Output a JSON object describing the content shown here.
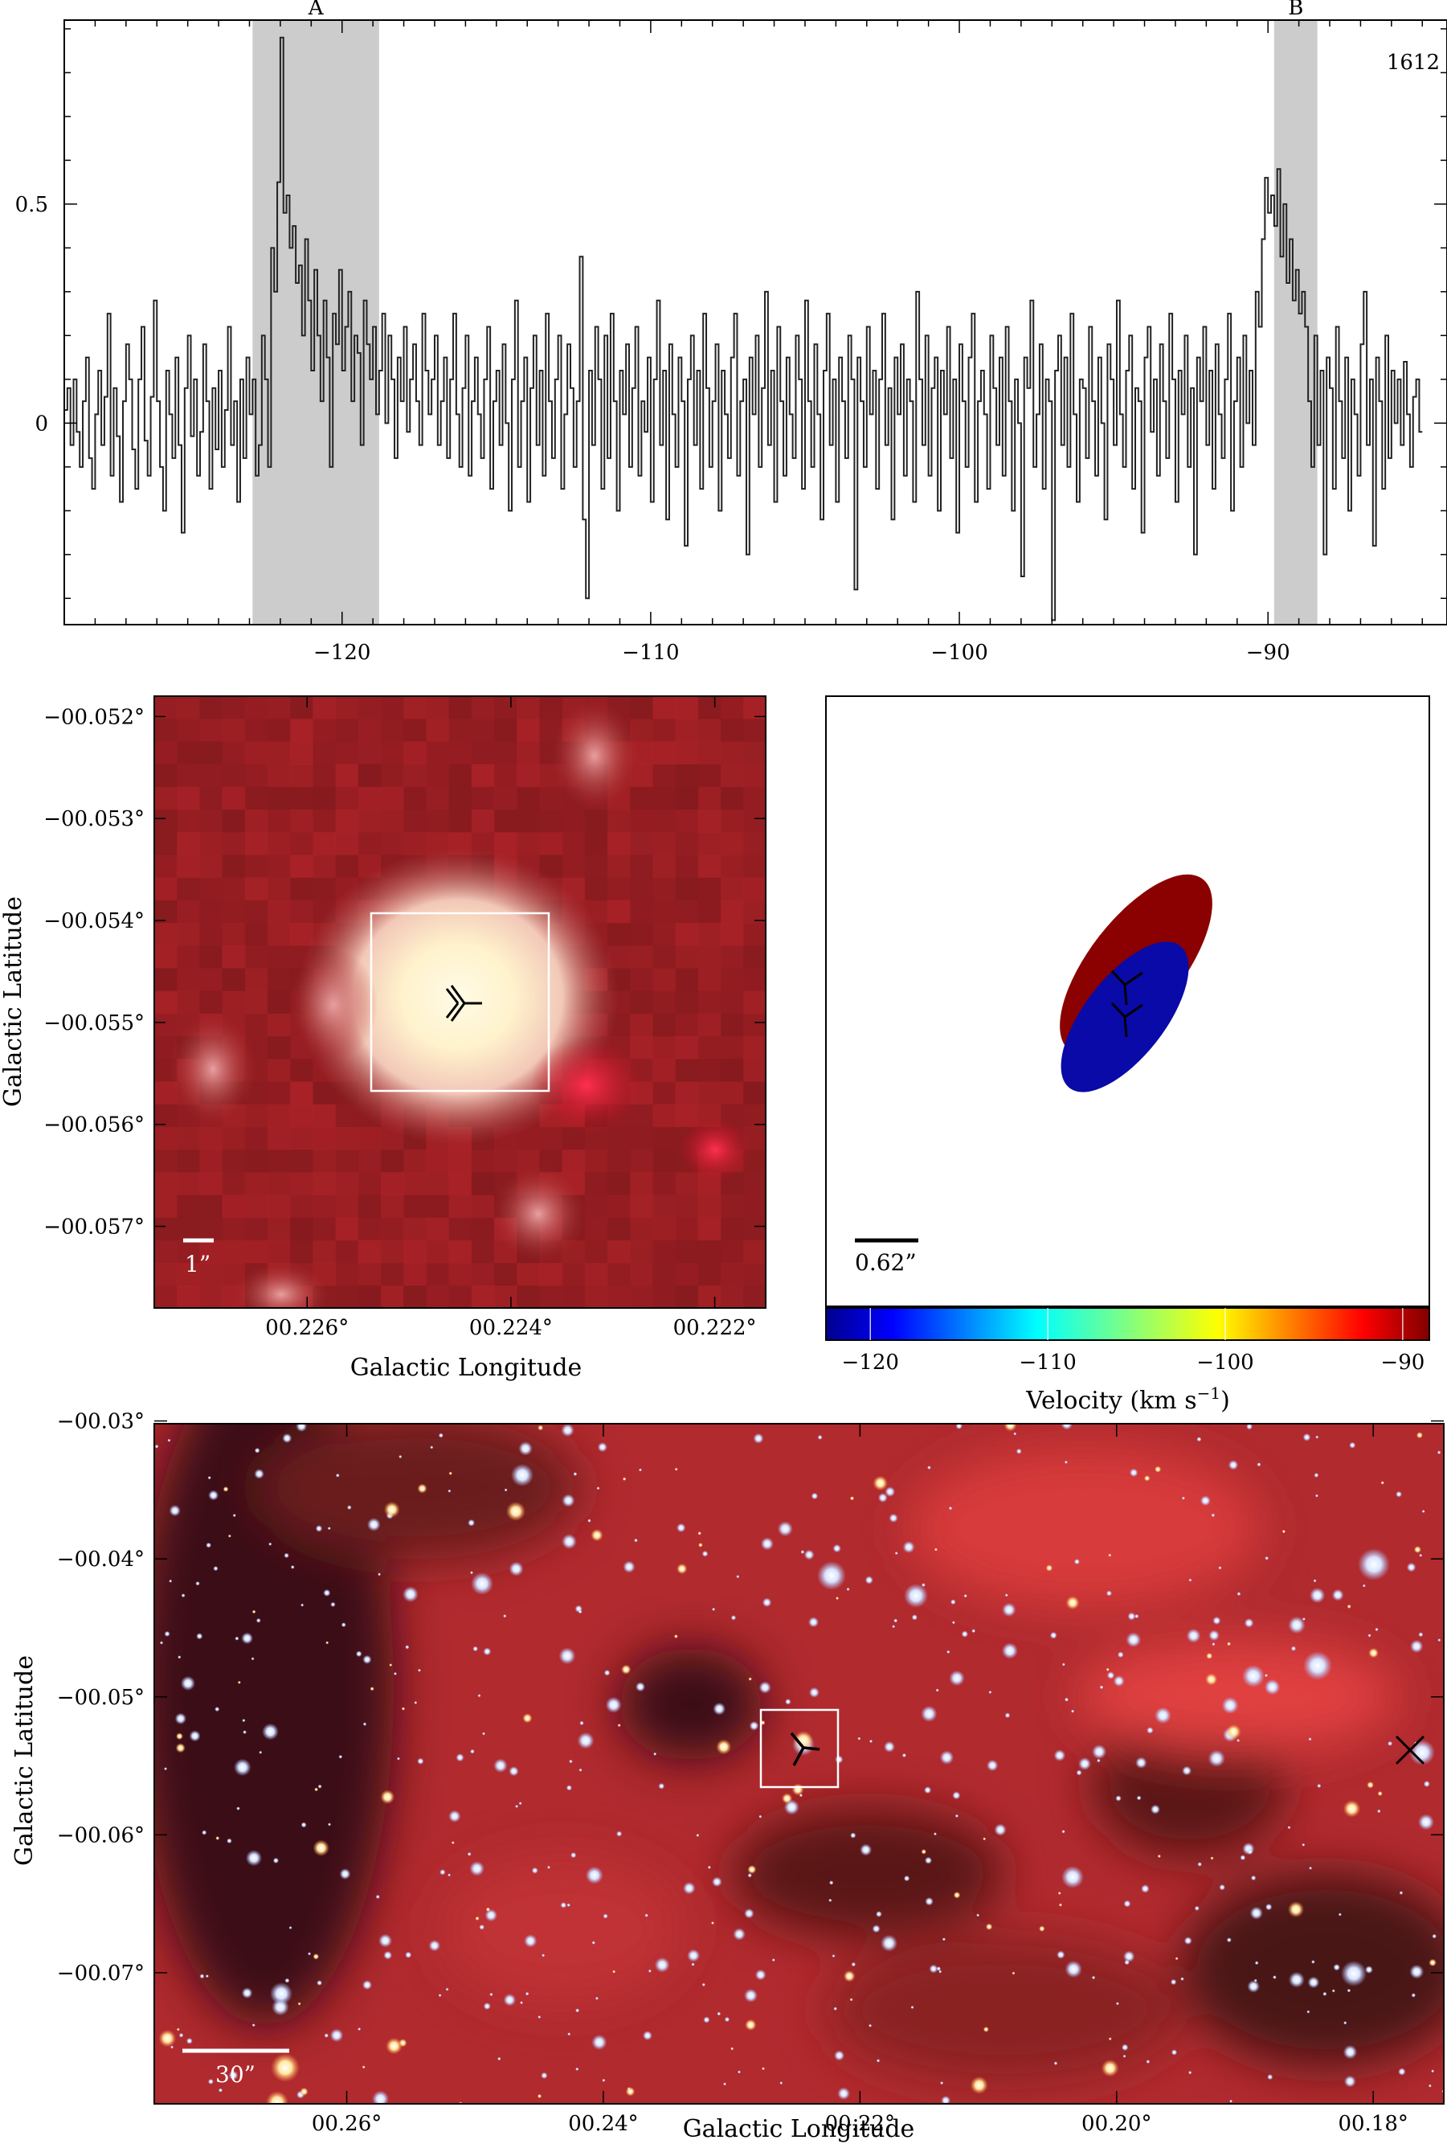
{
  "chart_data": [
    {
      "type": "line",
      "panel": "spectrum",
      "title": "",
      "xlabel": "",
      "ylabel": "",
      "xlim": [
        -129,
        -84.2
      ],
      "ylim": [
        -0.46,
        0.92
      ],
      "x_ticks": [
        -120,
        -110,
        -100,
        -90
      ],
      "x_tick_labels": [
        "−120",
        "−110",
        "−100",
        "−90"
      ],
      "y_ticks": [
        0,
        0.5
      ],
      "y_tick_labels": [
        "0",
        "0.5"
      ],
      "annotation": "1612",
      "highlight_regions": [
        {
          "label": "A",
          "x_range": [
            -122.9,
            -118.8
          ]
        },
        {
          "label": "B",
          "x_range": [
            -89.8,
            -88.4
          ]
        }
      ],
      "series": [
        {
          "x_start": -129.0,
          "x_step": 0.1,
          "values": [
            0.03,
            0.08,
            -0.05,
            0.1,
            -0.02,
            -0.1,
            0.05,
            0.15,
            -0.08,
            -0.15,
            0.02,
            0.12,
            -0.05,
            0.06,
            0.25,
            -0.12,
            0.08,
            -0.03,
            -0.18,
            0.05,
            0.18,
            0.1,
            -0.06,
            -0.15,
            0.1,
            0.22,
            -0.04,
            -0.12,
            0.06,
            0.28,
            0.05,
            -0.1,
            -0.2,
            0.12,
            0.02,
            -0.08,
            0.15,
            -0.05,
            -0.25,
            0.08,
            0.2,
            -0.03,
            0.1,
            -0.12,
            -0.02,
            0.18,
            0.05,
            -0.15,
            0.08,
            -0.06,
            0.12,
            -0.1,
            0.03,
            0.22,
            -0.05,
            0.05,
            -0.18,
            0.1,
            -0.08,
            0.15,
            0.02,
            0.1,
            -0.12,
            -0.05,
            0.2,
            0.1,
            -0.1,
            0.4,
            0.3,
            0.55,
            0.88,
            0.48,
            0.52,
            0.4,
            0.45,
            0.32,
            0.36,
            0.2,
            0.42,
            0.28,
            0.12,
            0.35,
            0.2,
            0.05,
            0.28,
            0.15,
            -0.1,
            0.25,
            0.18,
            0.35,
            0.12,
            0.22,
            0.3,
            0.05,
            0.2,
            0.16,
            -0.05,
            0.28,
            0.18,
            0.1,
            0.22,
            0.02,
            0.12,
            0.25,
            0.0,
            0.2,
            0.1,
            -0.08,
            0.15,
            0.05,
            0.22,
            -0.02,
            0.1,
            0.18,
            0.05,
            -0.05,
            0.25,
            0.12,
            0.02,
            0.1,
            0.2,
            -0.05,
            0.05,
            0.15,
            -0.08,
            0.1,
            0.25,
            0.02,
            -0.1,
            0.08,
            0.2,
            -0.12,
            0.05,
            0.15,
            0.02,
            -0.08,
            0.1,
            0.22,
            -0.15,
            0.05,
            0.12,
            -0.05,
            0.18,
            0.0,
            -0.2,
            0.1,
            0.28,
            -0.1,
            0.05,
            0.15,
            -0.18,
            0.08,
            0.2,
            -0.05,
            0.12,
            -0.12,
            0.25,
            0.05,
            -0.08,
            0.1,
            0.2,
            -0.15,
            0.02,
            0.18,
            0.08,
            -0.1,
            0.05,
            0.38,
            -0.22,
            -0.4,
            0.12,
            -0.05,
            0.22,
            0.1,
            -0.15,
            0.2,
            -0.08,
            0.25,
            0.05,
            -0.2,
            0.12,
            0.02,
            0.18,
            -0.1,
            0.08,
            0.22,
            -0.12,
            0.05,
            -0.02,
            0.15,
            -0.18,
            0.1,
            0.28,
            -0.05,
            0.12,
            -0.22,
            0.18,
            0.02,
            -0.1,
            0.15,
            0.05,
            -0.28,
            0.1,
            0.2,
            -0.05,
            0.12,
            -0.15,
            0.25,
            0.08,
            -0.1,
            0.05,
            0.18,
            -0.2,
            0.12,
            0.02,
            -0.08,
            0.15,
            0.25,
            -0.12,
            0.05,
            0.1,
            -0.3,
            0.15,
            0.02,
            0.2,
            -0.1,
            0.08,
            0.3,
            -0.05,
            0.12,
            -0.18,
            0.22,
            0.05,
            -0.12,
            0.15,
            0.02,
            -0.08,
            0.2,
            0.1,
            -0.15,
            0.28,
            0.05,
            -0.1,
            0.18,
            0.02,
            -0.22,
            0.12,
            0.25,
            -0.05,
            0.1,
            -0.18,
            0.15,
            0.05,
            -0.08,
            0.2,
            0.1,
            -0.38,
            0.15,
            0.05,
            -0.1,
            0.22,
            0.02,
            0.12,
            -0.15,
            0.1,
            0.25,
            -0.05,
            0.08,
            -0.22,
            0.15,
            0.02,
            0.18,
            -0.12,
            0.1,
            0.05,
            -0.18,
            0.3,
            0.1,
            -0.05,
            0.2,
            -0.12,
            0.08,
            0.15,
            -0.2,
            0.12,
            0.02,
            0.22,
            -0.08,
            0.1,
            -0.25,
            0.18,
            0.05,
            -0.1,
            0.15,
            0.25,
            -0.18,
            0.05,
            0.12,
            0.02,
            -0.15,
            0.2,
            0.08,
            -0.05,
            0.15,
            -0.12,
            0.22,
            0.05,
            -0.2,
            0.1,
            0.0,
            -0.35,
            0.15,
            0.08,
            0.28,
            -0.1,
            0.02,
            0.18,
            -0.15,
            0.1,
            0.05,
            -0.45,
            0.12,
            0.2,
            -0.05,
            0.15,
            -0.1,
            0.25,
            0.02,
            -0.18,
            0.1,
            0.08,
            -0.08,
            0.22,
            0.05,
            -0.12,
            0.15,
            0.0,
            -0.22,
            0.18,
            0.1,
            -0.05,
            0.28,
            0.02,
            -0.1,
            0.12,
            0.2,
            -0.15,
            0.08,
            0.05,
            -0.25,
            0.15,
            0.22,
            -0.02,
            0.1,
            -0.12,
            0.18,
            0.05,
            -0.08,
            0.25,
            0.1,
            -0.18,
            0.12,
            0.02,
            0.2,
            -0.1,
            0.08,
            -0.3,
            0.15,
            0.05,
            0.22,
            -0.05,
            0.12,
            -0.15,
            0.18,
            0.02,
            -0.08,
            0.1,
            0.25,
            -0.2,
            0.05,
            0.15,
            -0.1,
            0.2,
            0.0,
            0.12,
            -0.05,
            0.3,
            0.22,
            0.42,
            0.56,
            0.48,
            0.52,
            0.45,
            0.58,
            0.38,
            0.5,
            0.32,
            0.42,
            0.28,
            0.35,
            0.25,
            0.3,
            0.22,
            0.05,
            -0.1,
            0.2,
            -0.05,
            0.12,
            -0.3,
            0.15,
            0.08,
            -0.15,
            0.22,
            0.05,
            -0.08,
            0.15,
            -0.2,
            0.1,
            0.02,
            -0.12,
            0.18,
            0.3,
            -0.05,
            0.1,
            -0.28,
            0.15,
            0.05,
            -0.15,
            0.2,
            -0.08,
            0.12,
            0.0,
            0.1,
            -0.05,
            0.14,
            0.02,
            -0.1,
            0.06,
            0.1,
            -0.02
          ]
        }
      ]
    },
    {
      "type": "heatmap",
      "panel": "zoom-image",
      "title": "",
      "xlabel": "Galactic Longitude",
      "ylabel": "Galactic Latitude",
      "xlim": [
        0.2275,
        0.2215
      ],
      "ylim": [
        -0.0578,
        -0.0518
      ],
      "x_ticks": [
        0.226,
        0.224,
        0.222
      ],
      "x_tick_labels": [
        "00.226°",
        "00.224°",
        "00.222°"
      ],
      "y_ticks": [
        -0.052,
        -0.053,
        -0.054,
        -0.055,
        -0.056,
        -0.057
      ],
      "y_tick_labels": [
        "−00.052°",
        "−00.053°",
        "−00.054°",
        "−00.055°",
        "−00.056°",
        "−00.057°"
      ],
      "scale_bar_label": "1”"
    },
    {
      "type": "scatter",
      "panel": "maser-spots",
      "title": "",
      "xlabel": "Velocity (km s",
      "xlabel_superscript": "−1",
      "xlabel_suffix": ")",
      "colorbar_range": [
        -122.5,
        -88.5
      ],
      "colorbar_ticks": [
        -120,
        -110,
        -100,
        -90
      ],
      "colorbar_tick_labels": [
        "−120",
        "−110",
        "−100",
        "−90"
      ],
      "scale_bar_label": "0.62”",
      "spots": [
        {
          "name": "red",
          "velocity": -89.5,
          "color": "#8b0000"
        },
        {
          "name": "blue",
          "velocity": -121.5,
          "color": "#0a0aa8"
        }
      ]
    },
    {
      "type": "heatmap",
      "panel": "wide-image",
      "title": "",
      "xlabel": "Galactic Longitude",
      "ylabel": "Galactic Latitude",
      "xlim": [
        0.275,
        0.1745
      ],
      "ylim": [
        -0.0795,
        -0.0302
      ],
      "x_ticks": [
        0.26,
        0.24,
        0.22,
        0.2,
        0.18
      ],
      "x_tick_labels": [
        "00.26°",
        "00.24°",
        "00.22°",
        "00.20°",
        "00.18°"
      ],
      "y_ticks": [
        -0.03,
        -0.04,
        -0.05,
        -0.06,
        -0.07
      ],
      "y_tick_labels": [
        "−00.03°",
        "−00.04°",
        "−00.05°",
        "−00.06°",
        "−00.07°"
      ],
      "scale_bar_label": "30”"
    }
  ]
}
